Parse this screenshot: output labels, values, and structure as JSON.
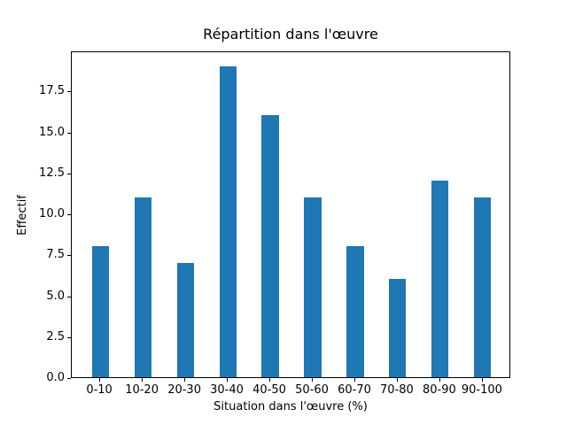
{
  "figure": {
    "background_color": "#ffffff",
    "text_color": "#000000",
    "spine_color": "#000000"
  },
  "chart_data": {
    "type": "bar",
    "title": "Répartition dans l'œuvre",
    "xlabel": "Situation dans l'œuvre (%)",
    "ylabel": "Effectif",
    "categories": [
      "0-10",
      "10-20",
      "20-30",
      "30-40",
      "40-50",
      "50-60",
      "60-70",
      "70-80",
      "80-90",
      "90-100"
    ],
    "values": [
      8,
      11,
      7,
      19,
      16,
      11,
      8,
      6,
      12,
      11
    ],
    "bar_color": "#1f77b4",
    "bar_width_ratio": 0.4,
    "ylim": [
      0,
      19.95
    ],
    "yticks": [
      0,
      2.5,
      5,
      7.5,
      10,
      12.5,
      15,
      17.5
    ],
    "ytick_labels": [
      "0.0",
      "2.5",
      "5.0",
      "7.5",
      "10.0",
      "12.5",
      "15.0",
      "17.5"
    ],
    "grid": false,
    "legend_position": "none"
  }
}
